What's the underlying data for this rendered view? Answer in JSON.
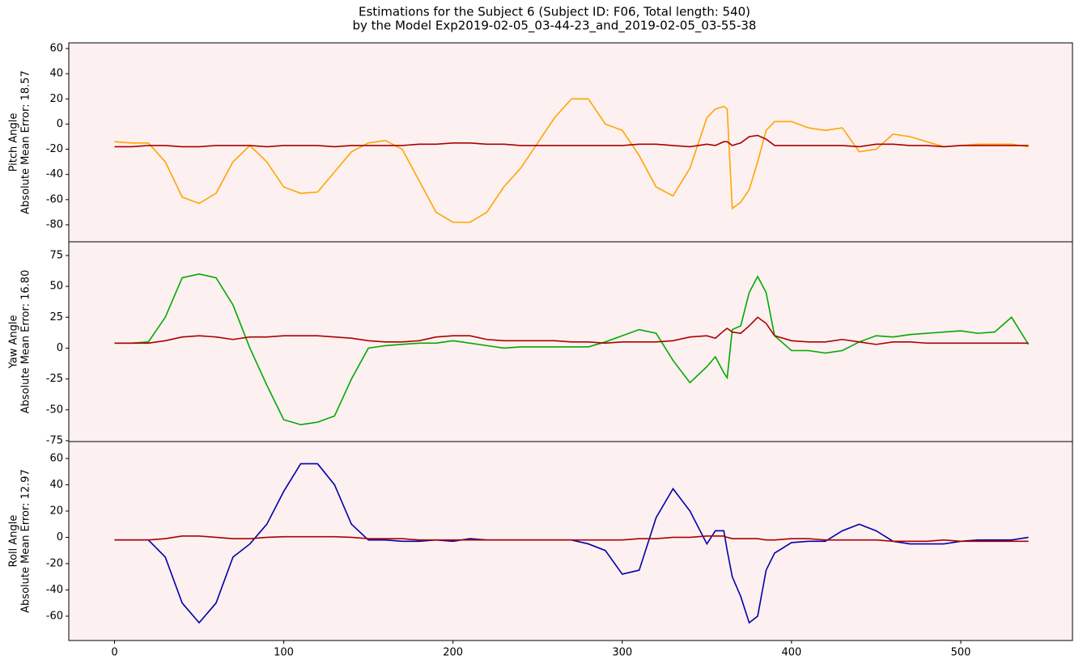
{
  "chart_data": [
    {
      "type": "line",
      "title": "Estimations for the Subject 6 (Subject ID: F06, Total length: 540)",
      "subtitle": "by the Model Exp2019-02-05_03-44-23_and_2019-02-05_03-55-38",
      "ylabel": [
        "Pitch Angle",
        "Absolute Mean Error: 18.57"
      ],
      "background": "#fdf0f0",
      "x": [
        0,
        10,
        20,
        30,
        40,
        50,
        60,
        70,
        80,
        90,
        100,
        110,
        120,
        130,
        140,
        150,
        160,
        170,
        180,
        190,
        200,
        210,
        220,
        230,
        240,
        250,
        260,
        270,
        280,
        290,
        300,
        310,
        320,
        330,
        340,
        350,
        355,
        360,
        362,
        365,
        370,
        375,
        380,
        385,
        390,
        400,
        410,
        420,
        430,
        440,
        450,
        460,
        470,
        480,
        490,
        500,
        510,
        520,
        530,
        540
      ],
      "xlim": [
        -27,
        566
      ],
      "ylim": [
        -93.5,
        64.5
      ],
      "yticks": [
        -80,
        -60,
        -40,
        -20,
        0,
        20,
        40,
        60
      ],
      "series": [
        {
          "color": "#ffa500",
          "values": [
            -14,
            -15,
            -15,
            -30,
            -58,
            -63,
            -55,
            -30,
            -17,
            -30,
            -50,
            -55,
            -54,
            -38,
            -22,
            -15,
            -13,
            -20,
            -45,
            -70,
            -78,
            -78,
            -70,
            -50,
            -35,
            -15,
            5,
            20,
            20,
            0,
            -5,
            -25,
            -50,
            -57,
            -35,
            5,
            12,
            14,
            12,
            -67,
            -62,
            -52,
            -30,
            -5,
            2,
            2,
            -3,
            -5,
            -3,
            -22,
            -20,
            -8,
            -10,
            -14,
            -18,
            -17,
            -16,
            -16,
            -16,
            -18
          ]
        },
        {
          "color": "#aa0000",
          "values": [
            -18,
            -18,
            -17,
            -17,
            -18,
            -18,
            -17,
            -17,
            -17,
            -18,
            -17,
            -17,
            -17,
            -18,
            -17,
            -17,
            -17,
            -17,
            -16,
            -16,
            -15,
            -15,
            -16,
            -16,
            -17,
            -17,
            -17,
            -17,
            -17,
            -17,
            -17,
            -16,
            -16,
            -17,
            -18,
            -16,
            -17,
            -14,
            -14,
            -17,
            -15,
            -10,
            -9,
            -12,
            -17,
            -17,
            -17,
            -17,
            -17,
            -18,
            -16,
            -16,
            -17,
            -17,
            -18,
            -17,
            -17,
            -17,
            -17,
            -17
          ]
        }
      ]
    },
    {
      "type": "line",
      "ylabel": [
        "Yaw Angle",
        "Absolute Mean Error: 16.80"
      ],
      "background": "#fdf0f0",
      "x": [
        0,
        10,
        20,
        30,
        40,
        50,
        60,
        70,
        80,
        90,
        100,
        110,
        120,
        130,
        140,
        150,
        160,
        170,
        180,
        190,
        200,
        210,
        220,
        230,
        240,
        250,
        260,
        270,
        280,
        290,
        300,
        310,
        320,
        330,
        340,
        350,
        355,
        360,
        362,
        365,
        370,
        375,
        380,
        385,
        390,
        400,
        410,
        420,
        430,
        440,
        450,
        460,
        470,
        480,
        490,
        500,
        510,
        520,
        530,
        540
      ],
      "xlim": [
        -27,
        566
      ],
      "ylim": [
        -75.7,
        86.1
      ],
      "yticks": [
        -75,
        -50,
        -25,
        0,
        25,
        50,
        75
      ],
      "series": [
        {
          "color": "#00aa00",
          "values": [
            4,
            4,
            5,
            25,
            57,
            60,
            57,
            35,
            0,
            -30,
            -58,
            -62,
            -60,
            -55,
            -25,
            0,
            2,
            3,
            4,
            4,
            6,
            4,
            2,
            0,
            1,
            1,
            1,
            1,
            1,
            5,
            10,
            15,
            12,
            -10,
            -28,
            -15,
            -7,
            -20,
            -24,
            15,
            18,
            45,
            58,
            45,
            10,
            -2,
            -2,
            -4,
            -2,
            5,
            10,
            9,
            11,
            12,
            13,
            14,
            12,
            13,
            25,
            3
          ]
        },
        {
          "color": "#aa0000",
          "values": [
            4,
            4,
            4,
            6,
            9,
            10,
            9,
            7,
            9,
            9,
            10,
            10,
            10,
            9,
            8,
            6,
            5,
            5,
            6,
            9,
            10,
            10,
            7,
            6,
            6,
            6,
            6,
            5,
            5,
            4,
            5,
            5,
            5,
            6,
            9,
            10,
            8,
            14,
            16,
            13,
            12,
            18,
            25,
            20,
            10,
            6,
            5,
            5,
            7,
            5,
            3,
            5,
            5,
            4,
            4,
            4,
            4,
            4,
            4,
            4
          ]
        }
      ]
    },
    {
      "type": "line",
      "ylabel": [
        "Roll Angle",
        "Absolute Mean Error: 12.97"
      ],
      "background": "#fdf0f0",
      "x": [
        0,
        10,
        20,
        30,
        40,
        50,
        60,
        70,
        80,
        90,
        100,
        110,
        120,
        130,
        140,
        150,
        160,
        170,
        180,
        190,
        200,
        210,
        220,
        230,
        240,
        250,
        260,
        270,
        280,
        290,
        300,
        310,
        320,
        330,
        340,
        350,
        355,
        360,
        362,
        365,
        370,
        375,
        380,
        385,
        390,
        400,
        410,
        420,
        430,
        440,
        450,
        460,
        470,
        480,
        490,
        500,
        510,
        520,
        530,
        540
      ],
      "xlim": [
        -27,
        566
      ],
      "ylim": [
        -78.5,
        72.9
      ],
      "yticks": [
        -60,
        -40,
        -20,
        0,
        20,
        40,
        60
      ],
      "xticks": [
        0,
        100,
        200,
        300,
        400,
        500
      ],
      "series": [
        {
          "color": "#0000aa",
          "values": [
            -2,
            -2,
            -2,
            -15,
            -50,
            -65,
            -50,
            -15,
            -5,
            10,
            35,
            56,
            56,
            40,
            10,
            -2,
            -2,
            -3,
            -3,
            -2,
            -3,
            -1,
            -2,
            -2,
            -2,
            -2,
            -2,
            -2,
            -5,
            -10,
            -28,
            -25,
            15,
            37,
            20,
            -5,
            5,
            5,
            -10,
            -30,
            -45,
            -65,
            -60,
            -25,
            -12,
            -4,
            -3,
            -3,
            5,
            10,
            5,
            -3,
            -5,
            -5,
            -5,
            -3,
            -2,
            -2,
            -2,
            0
          ]
        },
        {
          "color": "#aa0000",
          "values": [
            -2,
            -2,
            -2,
            -1,
            1,
            1,
            0,
            -1,
            -1,
            0,
            0.5,
            0.5,
            0.5,
            0.5,
            0,
            -1,
            -1,
            -1,
            -2,
            -2,
            -2,
            -2,
            -2,
            -2,
            -2,
            -2,
            -2,
            -2,
            -2,
            -2,
            -2,
            -1,
            -1,
            0,
            0,
            1,
            1,
            1,
            0,
            -1,
            -1,
            -1,
            -1,
            -2,
            -2,
            -1,
            -1,
            -2,
            -2,
            -2,
            -2,
            -3,
            -3,
            -3,
            -2,
            -3,
            -3,
            -3,
            -3,
            -3
          ]
        }
      ]
    }
  ]
}
